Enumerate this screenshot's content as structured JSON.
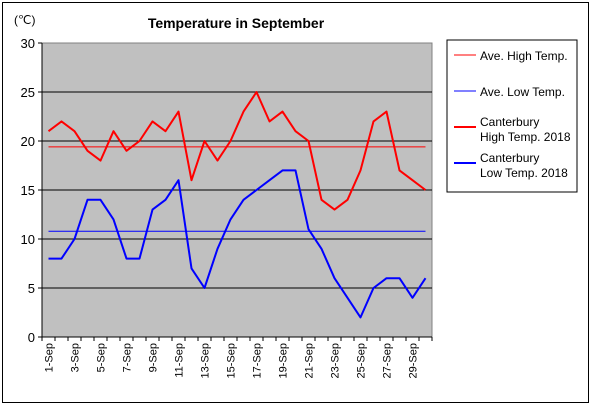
{
  "chart_data": {
    "type": "line",
    "title": "Temperature in September",
    "unit": "(℃)",
    "ylim": [
      0,
      30
    ],
    "yticks": [
      0,
      5,
      10,
      15,
      20,
      25,
      30
    ],
    "grid": "horizontal",
    "legend_position": "right",
    "background_color": "#c0c0c0",
    "categories": [
      "1-Sep",
      "2-Sep",
      "3-Sep",
      "4-Sep",
      "5-Sep",
      "6-Sep",
      "7-Sep",
      "8-Sep",
      "9-Sep",
      "10-Sep",
      "11-Sep",
      "12-Sep",
      "13-Sep",
      "14-Sep",
      "15-Sep",
      "16-Sep",
      "17-Sep",
      "18-Sep",
      "19-Sep",
      "20-Sep",
      "21-Sep",
      "22-Sep",
      "23-Sep",
      "24-Sep",
      "25-Sep",
      "26-Sep",
      "27-Sep",
      "28-Sep",
      "29-Sep",
      "30-Sep"
    ],
    "tick_labels": [
      "1-Sep",
      "3-Sep",
      "5-Sep",
      "7-Sep",
      "9-Sep",
      "11-Sep",
      "13-Sep",
      "15-Sep",
      "17-Sep",
      "19-Sep",
      "21-Sep",
      "23-Sep",
      "25-Sep",
      "27-Sep",
      "29-Sep"
    ],
    "series": [
      {
        "name": "Ave. High Temp.",
        "color": "#ff0000",
        "width": 1,
        "values": [
          19.4,
          19.4,
          19.4,
          19.4,
          19.4,
          19.4,
          19.4,
          19.4,
          19.4,
          19.4,
          19.4,
          19.4,
          19.4,
          19.4,
          19.4,
          19.4,
          19.4,
          19.4,
          19.4,
          19.4,
          19.4,
          19.4,
          19.4,
          19.4,
          19.4,
          19.4,
          19.4,
          19.4,
          19.4,
          19.4
        ]
      },
      {
        "name": "Ave. Low Temp.",
        "color": "#0000ff",
        "width": 1,
        "values": [
          10.8,
          10.8,
          10.8,
          10.8,
          10.8,
          10.8,
          10.8,
          10.8,
          10.8,
          10.8,
          10.8,
          10.8,
          10.8,
          10.8,
          10.8,
          10.8,
          10.8,
          10.8,
          10.8,
          10.8,
          10.8,
          10.8,
          10.8,
          10.8,
          10.8,
          10.8,
          10.8,
          10.8,
          10.8,
          10.8
        ]
      },
      {
        "name": "Canterbury High Temp. 2018",
        "legend_lines": [
          "Canterbury",
          "High Temp. 2018"
        ],
        "color": "#ff0000",
        "width": 2,
        "values": [
          21,
          22,
          21,
          19,
          18,
          21,
          19,
          20,
          22,
          21,
          23,
          16,
          20,
          18,
          20,
          23,
          25,
          22,
          23,
          21,
          20,
          14,
          13,
          14,
          17,
          22,
          23,
          17,
          16,
          15
        ]
      },
      {
        "name": "Canterbury Low Temp. 2018",
        "legend_lines": [
          "Canterbury",
          "Low Temp. 2018"
        ],
        "color": "#0000ff",
        "width": 2,
        "values": [
          8,
          8,
          10,
          14,
          14,
          12,
          8,
          8,
          13,
          14,
          16,
          7,
          5,
          9,
          12,
          14,
          15,
          16,
          17,
          17,
          11,
          9,
          6,
          4,
          2,
          5,
          6,
          6,
          4,
          6
        ]
      }
    ]
  }
}
